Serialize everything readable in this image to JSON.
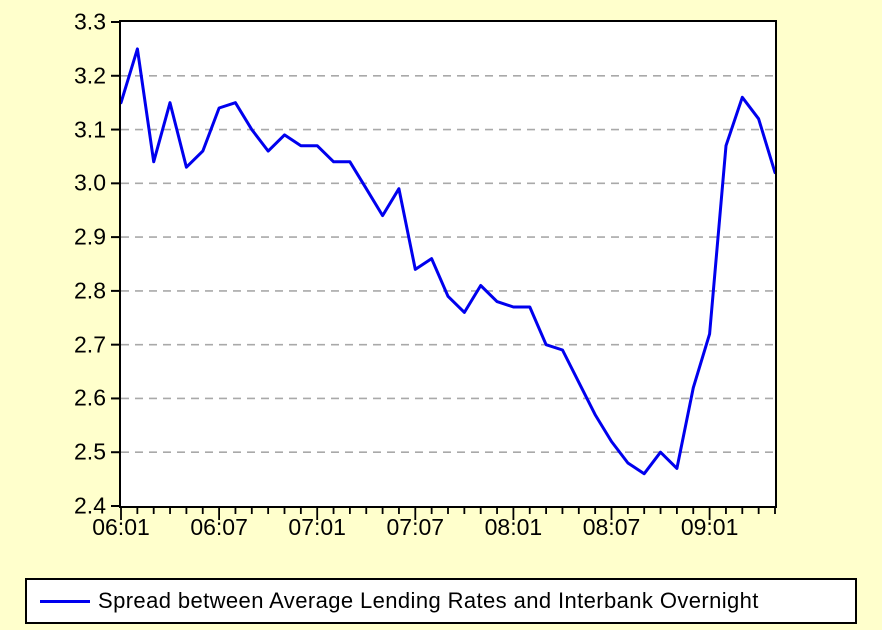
{
  "colors": {
    "background": "#FFFFCC",
    "plot_background": "#FFFFFF",
    "line": "#0000EE",
    "grid": "#A9A9A9",
    "frame": "#000000",
    "text": "#000000"
  },
  "legend": {
    "label": "Spread between Average Lending Rates and Interbank Overnight"
  },
  "chart_data": {
    "type": "line",
    "title": "",
    "xlabel": "",
    "ylabel": "",
    "x_unit": "month",
    "x": [
      "06:01",
      "06:02",
      "06:03",
      "06:04",
      "06:05",
      "06:06",
      "06:07",
      "06:08",
      "06:09",
      "06:10",
      "06:11",
      "06:12",
      "07:01",
      "07:02",
      "07:03",
      "07:04",
      "07:05",
      "07:06",
      "07:07",
      "07:08",
      "07:09",
      "07:10",
      "07:11",
      "07:12",
      "08:01",
      "08:02",
      "08:03",
      "08:04",
      "08:05",
      "08:06",
      "08:07",
      "08:08",
      "08:09",
      "08:10",
      "08:11",
      "08:12",
      "09:01",
      "09:02",
      "09:03",
      "09:04",
      "09:05"
    ],
    "series": [
      {
        "name": "Spread between Average Lending Rates and Interbank Overnight",
        "values": [
          3.15,
          3.25,
          3.04,
          3.15,
          3.03,
          3.06,
          3.14,
          3.15,
          3.1,
          3.06,
          3.09,
          3.07,
          3.07,
          3.04,
          3.04,
          2.99,
          2.94,
          2.99,
          2.84,
          2.86,
          2.79,
          2.76,
          2.81,
          2.78,
          2.77,
          2.77,
          2.7,
          2.69,
          2.63,
          2.57,
          2.52,
          2.48,
          2.46,
          2.5,
          2.47,
          2.62,
          2.72,
          3.07,
          3.16,
          3.12,
          3.02
        ]
      }
    ],
    "ylim": [
      2.4,
      3.3
    ],
    "y_ticks": [
      3.3,
      3.2,
      3.1,
      3.0,
      2.9,
      2.8,
      2.7,
      2.6,
      2.5,
      2.4
    ],
    "y_gridlines": [
      3.2,
      3.1,
      3.0,
      2.9,
      2.8,
      2.7,
      2.6,
      2.5
    ],
    "x_tick_labels": [
      {
        "label": "06:01",
        "month_index": 0
      },
      {
        "label": "06:07",
        "month_index": 6
      },
      {
        "label": "07:01",
        "month_index": 12
      },
      {
        "label": "07:07",
        "month_index": 18
      },
      {
        "label": "08:01",
        "month_index": 24
      },
      {
        "label": "08:07",
        "month_index": 30
      },
      {
        "label": "09:01",
        "month_index": 36
      }
    ],
    "grid": "horizontal-dashed",
    "legend_position": "bottom"
  }
}
